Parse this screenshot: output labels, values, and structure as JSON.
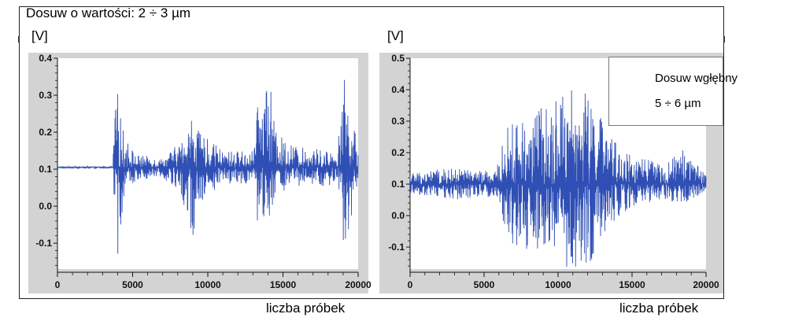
{
  "title": "Dosuw o wartości: 2 ÷ 3 µm",
  "callout": {
    "line1": "Dosuw wgłębny",
    "line2": "5 ÷ 6 µm"
  },
  "colors": {
    "signal": "#2f4fb4",
    "panel": "#d3d3d3",
    "axis": "#111111"
  },
  "chart_data": [
    {
      "type": "line",
      "ylabel": "[V]",
      "xlabel": "liczba próbek",
      "xlim": [
        0,
        20000
      ],
      "ylim": [
        -0.17,
        0.4
      ],
      "xticks": [
        0,
        5000,
        10000,
        15000,
        20000
      ],
      "xtick_labels": [
        "0",
        "5000",
        "10000",
        "15000",
        "20000"
      ],
      "yticks": [
        0.4,
        0.3,
        0.2,
        0.1,
        0.0,
        -0.1
      ],
      "ytick_labels": [
        "0.4",
        "0.3",
        "0.2",
        "0.1",
        "0.0",
        "-0.1"
      ],
      "series": [
        {
          "baseline": 0.105,
          "envelope": [
            {
              "x": 0,
              "upper": 0.107,
              "lower": 0.103
            },
            {
              "x": 3700,
              "upper": 0.107,
              "lower": 0.103
            },
            {
              "x": 3750,
              "upper": 0.24,
              "lower": -0.02
            },
            {
              "x": 4000,
              "upper": 0.31,
              "lower": -0.14
            },
            {
              "x": 4400,
              "upper": 0.2,
              "lower": 0.02
            },
            {
              "x": 5200,
              "upper": 0.14,
              "lower": 0.07
            },
            {
              "x": 7000,
              "upper": 0.13,
              "lower": 0.08
            },
            {
              "x": 8300,
              "upper": 0.18,
              "lower": 0.02
            },
            {
              "x": 9000,
              "upper": 0.26,
              "lower": -0.12
            },
            {
              "x": 9400,
              "upper": 0.2,
              "lower": 0.01
            },
            {
              "x": 11000,
              "upper": 0.15,
              "lower": 0.06
            },
            {
              "x": 13000,
              "upper": 0.15,
              "lower": 0.06
            },
            {
              "x": 13400,
              "upper": 0.3,
              "lower": -0.08
            },
            {
              "x": 14000,
              "upper": 0.39,
              "lower": -0.04
            },
            {
              "x": 14500,
              "upper": 0.2,
              "lower": 0.03
            },
            {
              "x": 16000,
              "upper": 0.16,
              "lower": 0.05
            },
            {
              "x": 18600,
              "upper": 0.15,
              "lower": 0.05
            },
            {
              "x": 19100,
              "upper": 0.35,
              "lower": -0.13
            },
            {
              "x": 19700,
              "upper": 0.22,
              "lower": 0.0
            },
            {
              "x": 20000,
              "upper": 0.16,
              "lower": 0.05
            }
          ]
        }
      ]
    },
    {
      "type": "line",
      "ylabel": "[V]",
      "xlabel": "liczba próbek",
      "xlim": [
        0,
        20000
      ],
      "ylim": [
        -0.17,
        0.5
      ],
      "xticks": [
        0,
        5000,
        10000,
        15000,
        20000
      ],
      "xtick_labels": [
        "0",
        "5000",
        "10000",
        "15000",
        "20000"
      ],
      "yticks": [
        0.5,
        0.4,
        0.3,
        0.2,
        0.1,
        0.0,
        -0.1
      ],
      "ytick_labels": [
        "0.5",
        "0.4",
        "0.3",
        "0.2",
        "0.1",
        "0.0",
        "-0.1"
      ],
      "series": [
        {
          "baseline": 0.1,
          "envelope": [
            {
              "x": 0,
              "upper": 0.14,
              "lower": 0.07
            },
            {
              "x": 3000,
              "upper": 0.15,
              "lower": 0.05
            },
            {
              "x": 5800,
              "upper": 0.14,
              "lower": 0.06
            },
            {
              "x": 6500,
              "upper": 0.28,
              "lower": -0.05
            },
            {
              "x": 7000,
              "upper": 0.3,
              "lower": -0.1
            },
            {
              "x": 9000,
              "upper": 0.35,
              "lower": -0.12
            },
            {
              "x": 10000,
              "upper": 0.38,
              "lower": -0.16
            },
            {
              "x": 11500,
              "upper": 0.42,
              "lower": -0.18
            },
            {
              "x": 12500,
              "upper": 0.36,
              "lower": -0.14
            },
            {
              "x": 13500,
              "upper": 0.25,
              "lower": -0.03
            },
            {
              "x": 15000,
              "upper": 0.2,
              "lower": 0.03
            },
            {
              "x": 17000,
              "upper": 0.16,
              "lower": 0.05
            },
            {
              "x": 18500,
              "upper": 0.21,
              "lower": 0.04
            },
            {
              "x": 20000,
              "upper": 0.14,
              "lower": 0.07
            }
          ]
        }
      ]
    }
  ]
}
